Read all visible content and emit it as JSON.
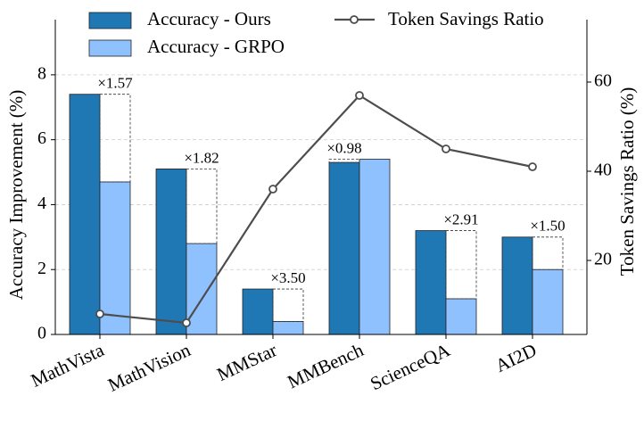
{
  "chart_data": {
    "type": "bar",
    "categories": [
      "MathVista",
      "MathVision",
      "MMStar",
      "MMBench",
      "ScienceQA",
      "AI2D"
    ],
    "series": [
      {
        "name": "Accuracy - Ours",
        "color": "#1f77b4",
        "values": [
          7.4,
          5.1,
          1.4,
          5.3,
          3.2,
          3.0
        ]
      },
      {
        "name": "Accuracy - GRPO",
        "color": "#8fc1ff",
        "values": [
          4.7,
          2.8,
          0.4,
          5.4,
          1.1,
          2.0
        ]
      },
      {
        "name": "Token Savings Ratio",
        "color": "#4d4d4d",
        "type": "line",
        "axis": "y2",
        "values": [
          8,
          6,
          36,
          57,
          45,
          41
        ]
      }
    ],
    "annotations": [
      "×1.57",
      "×1.82",
      "×3.50",
      "×0.98",
      "×2.91",
      "×1.50"
    ],
    "ylabel": "Accuracy Improvement (%)",
    "y2label": "Token Savings Ratio (%)",
    "ylim": [
      0,
      9.7
    ],
    "yticks": [
      0,
      2,
      4,
      6,
      8
    ],
    "y2lim": [
      3.4,
      74
    ],
    "y2ticks": [
      20,
      40,
      60
    ],
    "grid": true
  }
}
